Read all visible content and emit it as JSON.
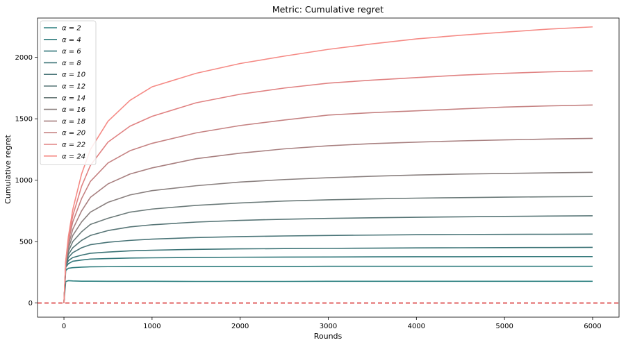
{
  "chart_data": {
    "type": "line",
    "title": "Metric: Cumulative regret",
    "xlabel": "Rounds",
    "ylabel": "Cumulative regret",
    "xlim": [
      -300,
      6300
    ],
    "ylim": [
      -115,
      2320
    ],
    "xticks": [
      0,
      1000,
      2000,
      3000,
      4000,
      5000,
      6000
    ],
    "yticks": [
      0,
      500,
      1000,
      1500,
      2000
    ],
    "x": [
      0,
      20,
      50,
      100,
      200,
      300,
      500,
      750,
      1000,
      1500,
      2000,
      2500,
      3000,
      3500,
      4000,
      4500,
      5000,
      5500,
      6000
    ],
    "reference_line": {
      "y": 0,
      "color": "#d62728",
      "style": "dashed"
    },
    "legend_position": "upper-left",
    "grid": false,
    "series": [
      {
        "name": "α = 2",
        "color": "#2a7f7f",
        "values": [
          0,
          175,
          182,
          180,
          178,
          178,
          177,
          177,
          177,
          176,
          176,
          176,
          177,
          177,
          177,
          177,
          177,
          177,
          177
        ]
      },
      {
        "name": "α = 4",
        "color": "#2d7b7c",
        "values": [
          0,
          265,
          283,
          288,
          292,
          295,
          296,
          297,
          297,
          298,
          298,
          298,
          299,
          299,
          299,
          299,
          299,
          299,
          299
        ]
      },
      {
        "name": "α = 6",
        "color": "#32777a",
        "values": [
          0,
          290,
          320,
          340,
          350,
          358,
          362,
          366,
          368,
          371,
          373,
          374,
          375,
          376,
          377,
          377,
          378,
          378,
          378
        ]
      },
      {
        "name": "α = 8",
        "color": "#3b7376",
        "values": [
          0,
          300,
          345,
          370,
          390,
          405,
          415,
          425,
          430,
          437,
          441,
          443,
          445,
          447,
          449,
          450,
          451,
          452,
          453
        ]
      },
      {
        "name": "α = 10",
        "color": "#497477",
        "values": [
          0,
          305,
          370,
          410,
          450,
          475,
          495,
          510,
          520,
          533,
          541,
          546,
          550,
          553,
          556,
          558,
          559,
          560,
          561
        ]
      },
      {
        "name": "α = 12",
        "color": "#577576",
        "values": [
          0,
          310,
          395,
          450,
          510,
          550,
          590,
          620,
          637,
          659,
          673,
          682,
          689,
          694,
          698,
          702,
          705,
          708,
          710
        ]
      },
      {
        "name": "α = 14",
        "color": "#6b7a79",
        "values": [
          0,
          315,
          420,
          500,
          580,
          640,
          690,
          740,
          765,
          795,
          815,
          830,
          840,
          848,
          854,
          858,
          862,
          865,
          867
        ]
      },
      {
        "name": "α = 16",
        "color": "#8a807f",
        "values": [
          0,
          320,
          445,
          550,
          660,
          740,
          820,
          880,
          915,
          955,
          985,
          1005,
          1020,
          1032,
          1042,
          1050,
          1055,
          1060,
          1064
        ]
      },
      {
        "name": "α = 18",
        "color": "#a88080",
        "values": [
          0,
          325,
          470,
          600,
          750,
          860,
          970,
          1050,
          1100,
          1175,
          1220,
          1255,
          1280,
          1298,
          1310,
          1320,
          1328,
          1335,
          1340
        ]
      },
      {
        "name": "α = 20",
        "color": "#c58282",
        "values": [
          0,
          330,
          500,
          660,
          850,
          990,
          1140,
          1240,
          1300,
          1385,
          1445,
          1490,
          1530,
          1550,
          1565,
          1580,
          1595,
          1605,
          1612
        ]
      },
      {
        "name": "α = 22",
        "color": "#e08282",
        "values": [
          0,
          335,
          520,
          710,
          950,
          1120,
          1310,
          1440,
          1520,
          1630,
          1700,
          1750,
          1790,
          1815,
          1835,
          1855,
          1870,
          1882,
          1890
        ]
      },
      {
        "name": "α = 24",
        "color": "#f58a85",
        "values": [
          0,
          340,
          540,
          760,
          1050,
          1250,
          1480,
          1650,
          1760,
          1870,
          1950,
          2010,
          2065,
          2110,
          2150,
          2180,
          2205,
          2230,
          2248
        ]
      }
    ]
  }
}
